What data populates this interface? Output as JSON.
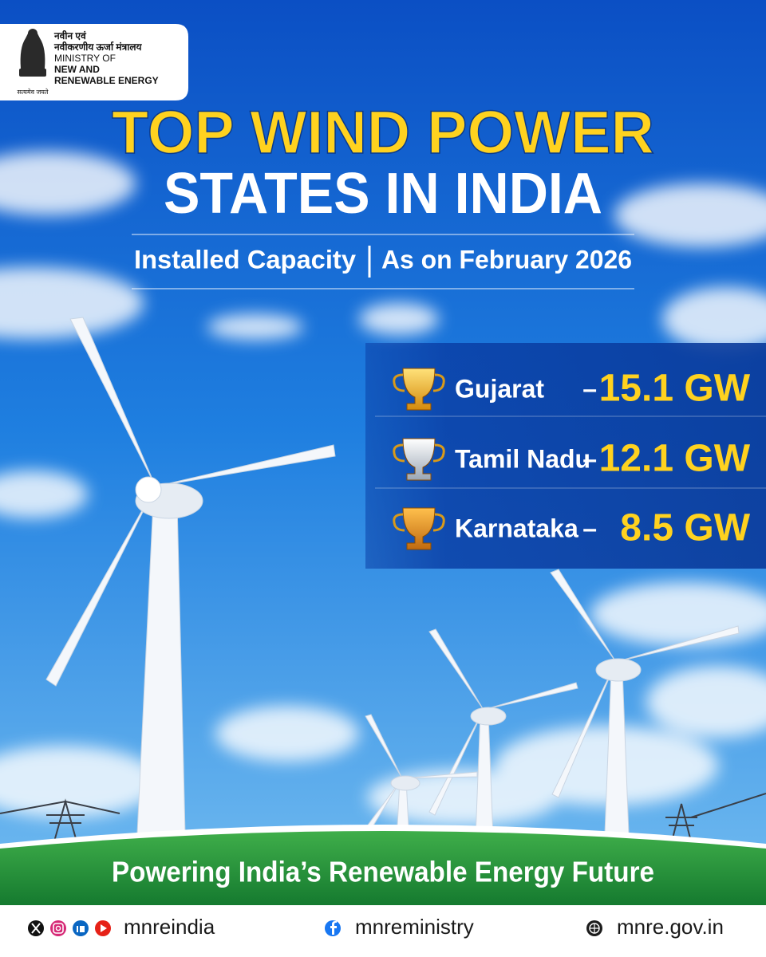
{
  "logo": {
    "hindi_line1": "नवीन एवं",
    "hindi_line2": "नवीकरणीय ऊर्जा मंत्रालय",
    "line1": "MINISTRY OF",
    "line2": "NEW AND",
    "line3": "RENEWABLE ENERGY",
    "motto": "सत्यमेव जयते"
  },
  "title": {
    "line1": "TOP WIND POWER",
    "line2": "STATES IN INDIA"
  },
  "subtitle": {
    "left": "Installed Capacity",
    "right": "As on February 2026"
  },
  "rankings": {
    "separator": "–",
    "items": [
      {
        "state": "Gujarat",
        "value": "15.1 GW"
      },
      {
        "state": "Tamil Nadu",
        "value": "12.1 GW"
      },
      {
        "state": "Karnataka",
        "value": "8.5 GW"
      }
    ]
  },
  "tagline": "Powering India’s Renewable Energy Future",
  "footer": {
    "handle1": "mnreindia",
    "handle2": "mnreministry",
    "website": "mnre.gov.in"
  }
}
